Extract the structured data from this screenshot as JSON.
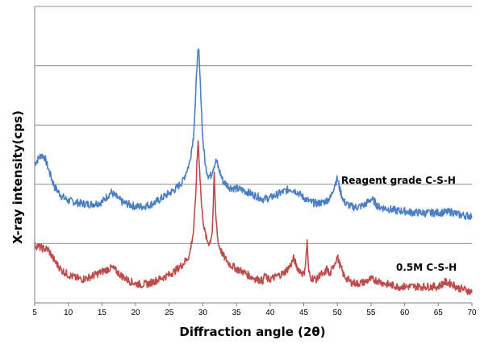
{
  "chart_data": {
    "type": "line",
    "title": "",
    "xlabel": "Diffraction angle (2θ)",
    "ylabel": "X-ray intensity(cps)",
    "xlim": [
      5,
      70
    ],
    "x_ticks": [
      5,
      10,
      15,
      20,
      25,
      30,
      35,
      40,
      45,
      50,
      55,
      60,
      65,
      70
    ],
    "ylim": [
      0,
      100
    ],
    "y_grid_values": [
      20,
      40,
      60,
      80,
      100
    ],
    "y_tick_labels_visible": false,
    "grid": "horizontal",
    "legend": "none (inline labels at right)",
    "series": [
      {
        "name": "Reagent grade C-S-H",
        "color": "#4a7fc8",
        "points": [
          [
            5,
            47
          ],
          [
            5.5,
            48.5
          ],
          [
            6,
            50
          ],
          [
            6.5,
            49
          ],
          [
            7,
            45.5
          ],
          [
            7.5,
            42
          ],
          [
            8,
            39
          ],
          [
            9,
            36
          ],
          [
            10,
            34.5
          ],
          [
            11,
            34
          ],
          [
            12,
            33.5
          ],
          [
            13,
            33.3
          ],
          [
            14,
            33.5
          ],
          [
            15,
            34
          ],
          [
            15.8,
            36
          ],
          [
            16.4,
            37.3
          ],
          [
            17,
            36
          ],
          [
            18,
            34
          ],
          [
            19,
            33.2
          ],
          [
            20,
            32.5
          ],
          [
            21,
            32.5
          ],
          [
            22,
            33
          ],
          [
            23,
            34
          ],
          [
            24,
            35.5
          ],
          [
            25,
            37
          ],
          [
            26,
            38.5
          ],
          [
            27,
            41
          ],
          [
            28,
            47
          ],
          [
            28.6,
            56
          ],
          [
            28.9,
            68
          ],
          [
            29.2,
            84
          ],
          [
            29.4,
            84.5
          ],
          [
            29.7,
            70
          ],
          [
            30,
            55
          ],
          [
            30.4,
            46
          ],
          [
            30.8,
            43
          ],
          [
            31.2,
            43
          ],
          [
            31.6,
            46
          ],
          [
            32,
            48
          ],
          [
            32.4,
            45
          ],
          [
            33,
            41
          ],
          [
            34,
            39
          ],
          [
            35,
            38.5
          ],
          [
            36,
            38
          ],
          [
            37,
            37
          ],
          [
            38,
            36
          ],
          [
            39,
            35
          ],
          [
            40,
            35.5
          ],
          [
            41,
            36.5
          ],
          [
            42,
            37.5
          ],
          [
            43,
            38.5
          ],
          [
            44,
            37.5
          ],
          [
            45,
            35.5
          ],
          [
            46,
            34
          ],
          [
            47,
            33.5
          ],
          [
            48,
            34
          ],
          [
            49,
            35.5
          ],
          [
            49.6,
            40
          ],
          [
            50,
            42
          ],
          [
            50.4,
            38
          ],
          [
            51,
            34
          ],
          [
            52,
            32.5
          ],
          [
            53,
            32.3
          ],
          [
            54,
            33
          ],
          [
            55,
            35
          ],
          [
            55.6,
            34
          ],
          [
            56,
            32.5
          ],
          [
            57,
            32
          ],
          [
            58,
            31.5
          ],
          [
            59,
            31
          ],
          [
            60,
            31
          ],
          [
            61,
            30.5
          ],
          [
            62,
            30.5
          ],
          [
            63,
            30.3
          ],
          [
            64,
            30.3
          ],
          [
            65,
            30.5
          ],
          [
            66,
            30.5
          ],
          [
            67,
            30.7
          ],
          [
            68,
            29.8
          ],
          [
            69,
            29.5
          ],
          [
            70,
            29.3
          ]
        ]
      },
      {
        "name": "0.5M C-S-H",
        "color": "#c04a4a",
        "points": [
          [
            5,
            19.5
          ],
          [
            6,
            18.5
          ],
          [
            7,
            18
          ],
          [
            8,
            14
          ],
          [
            9,
            11
          ],
          [
            10,
            9.5
          ],
          [
            11,
            8.5
          ],
          [
            12,
            8
          ],
          [
            13,
            8.5
          ],
          [
            14,
            9.5
          ],
          [
            15,
            10.5
          ],
          [
            16,
            11.5
          ],
          [
            16.5,
            11.8
          ],
          [
            17,
            11
          ],
          [
            18,
            9
          ],
          [
            19,
            7.5
          ],
          [
            20,
            6.5
          ],
          [
            21,
            6.2
          ],
          [
            22,
            6.5
          ],
          [
            23,
            7.5
          ],
          [
            24,
            8.5
          ],
          [
            25,
            9.5
          ],
          [
            26,
            11
          ],
          [
            27,
            13
          ],
          [
            28,
            16
          ],
          [
            28.6,
            24
          ],
          [
            28.9,
            34
          ],
          [
            29.1,
            46
          ],
          [
            29.3,
            55
          ],
          [
            29.5,
            46
          ],
          [
            29.8,
            33
          ],
          [
            30.2,
            25
          ],
          [
            30.6,
            21
          ],
          [
            31,
            20
          ],
          [
            31.4,
            24
          ],
          [
            31.7,
            43
          ],
          [
            31.9,
            30
          ],
          [
            32.3,
            20
          ],
          [
            33,
            16
          ],
          [
            34,
            13
          ],
          [
            35,
            11.5
          ],
          [
            36,
            10.5
          ],
          [
            37,
            9
          ],
          [
            38,
            8
          ],
          [
            39,
            7.5
          ],
          [
            39.2,
            10
          ],
          [
            39.5,
            8
          ],
          [
            40,
            8
          ],
          [
            41,
            9
          ],
          [
            42,
            10
          ],
          [
            43,
            12.5
          ],
          [
            43.5,
            15
          ],
          [
            44,
            12
          ],
          [
            45,
            9.5
          ],
          [
            45.3,
            14
          ],
          [
            45.5,
            21
          ],
          [
            45.7,
            11
          ],
          [
            46,
            8.5
          ],
          [
            47,
            8
          ],
          [
            47.5,
            10
          ],
          [
            48,
            9
          ],
          [
            48.5,
            12
          ],
          [
            48.8,
            9
          ],
          [
            49.5,
            13
          ],
          [
            50,
            15.5
          ],
          [
            50.5,
            12
          ],
          [
            51,
            9
          ],
          [
            52,
            7
          ],
          [
            53,
            6.5
          ],
          [
            54,
            7
          ],
          [
            55,
            8
          ],
          [
            56,
            7.5
          ],
          [
            57,
            6.5
          ],
          [
            58,
            6
          ],
          [
            59,
            5.5
          ],
          [
            60,
            5.5
          ],
          [
            61,
            5.5
          ],
          [
            62,
            5.5
          ],
          [
            63,
            5.5
          ],
          [
            64,
            5.5
          ],
          [
            65,
            5.5
          ],
          [
            66,
            7
          ],
          [
            67,
            6.5
          ],
          [
            68,
            5
          ],
          [
            69,
            4.5
          ],
          [
            70,
            3.5
          ]
        ]
      }
    ]
  },
  "labels": {
    "series_1": "Reagent grade C-S-H",
    "series_2": "0.5M C-S-H"
  },
  "axes": {
    "xlabel": "Diffraction angle (2θ)",
    "ylabel": "X-ray intensity(cps)"
  }
}
